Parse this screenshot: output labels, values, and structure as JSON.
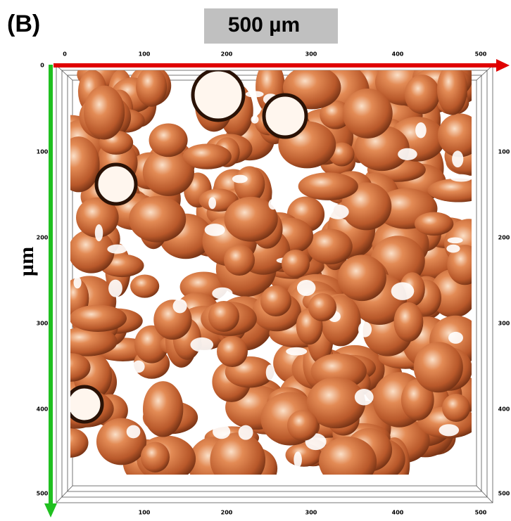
{
  "panel_label": "(B)",
  "scale_label": "500 µm",
  "axis_label": "µm",
  "top_ticks": [
    "0",
    "100",
    "200",
    "300",
    "400",
    "500"
  ],
  "left_ticks": [
    "0",
    "100",
    "200",
    "300",
    "400",
    "500"
  ],
  "right_ticks": [
    "100",
    "200",
    "300",
    "400",
    "500"
  ],
  "bottom_ticks": [
    "100",
    "200",
    "300",
    "400",
    "500"
  ]
}
